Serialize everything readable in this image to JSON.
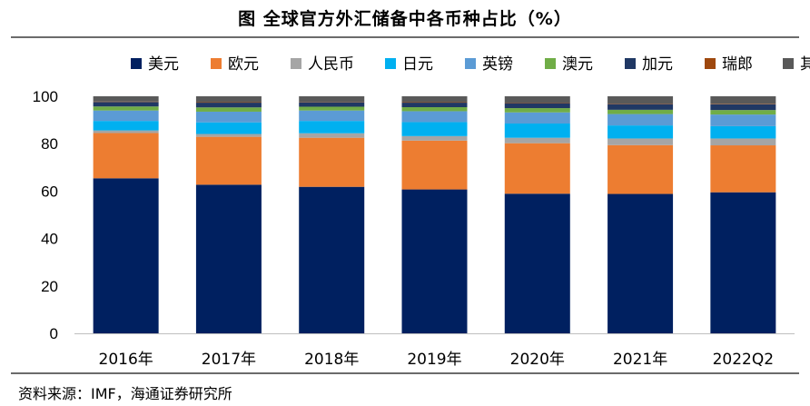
{
  "title": "图  全球官方外汇储备中各币种占比（%）",
  "source": "资料来源：IMF，海通证券研究所",
  "chart_data": {
    "type": "bar",
    "stacked": true,
    "title": "图  全球官方外汇储备中各币种占比（%）",
    "xlabel": "",
    "ylabel": "",
    "ylim": [
      0,
      100
    ],
    "yticks": [
      0,
      20,
      40,
      60,
      80,
      100
    ],
    "grid": false,
    "legend_position": "top",
    "categories": [
      "2016年",
      "2017年",
      "2018年",
      "2019年",
      "2020年",
      "2021年",
      "2022Q2"
    ],
    "series": [
      {
        "name": "美元",
        "color": "#002060",
        "values": [
          65.4,
          62.7,
          61.8,
          60.7,
          58.9,
          58.8,
          59.5
        ]
      },
      {
        "name": "欧元",
        "color": "#ED7D31",
        "values": [
          19.1,
          20.2,
          20.7,
          20.6,
          21.3,
          20.6,
          19.8
        ]
      },
      {
        "name": "人民币",
        "color": "#A5A5A5",
        "values": [
          1.1,
          1.2,
          1.9,
          1.9,
          2.3,
          2.8,
          2.9
        ]
      },
      {
        "name": "日元",
        "color": "#00B0F0",
        "values": [
          4.0,
          4.9,
          5.2,
          5.9,
          6.0,
          5.5,
          5.2
        ]
      },
      {
        "name": "英镑",
        "color": "#5B9BD5",
        "values": [
          4.4,
          4.5,
          4.4,
          4.6,
          4.7,
          4.8,
          4.9
        ]
      },
      {
        "name": "澳元",
        "color": "#70AD47",
        "values": [
          1.7,
          1.8,
          1.6,
          1.7,
          1.8,
          1.8,
          1.9
        ]
      },
      {
        "name": "加元",
        "color": "#203864",
        "values": [
          1.9,
          2.0,
          1.8,
          1.9,
          2.1,
          2.4,
          2.4
        ]
      },
      {
        "name": "瑞郎",
        "color": "#9E480E",
        "values": [
          0.2,
          0.2,
          0.1,
          0.2,
          0.2,
          0.2,
          0.2
        ]
      },
      {
        "name": "其它",
        "color": "#595959",
        "values": [
          2.2,
          2.5,
          2.5,
          2.5,
          2.7,
          3.1,
          3.2
        ]
      }
    ]
  }
}
